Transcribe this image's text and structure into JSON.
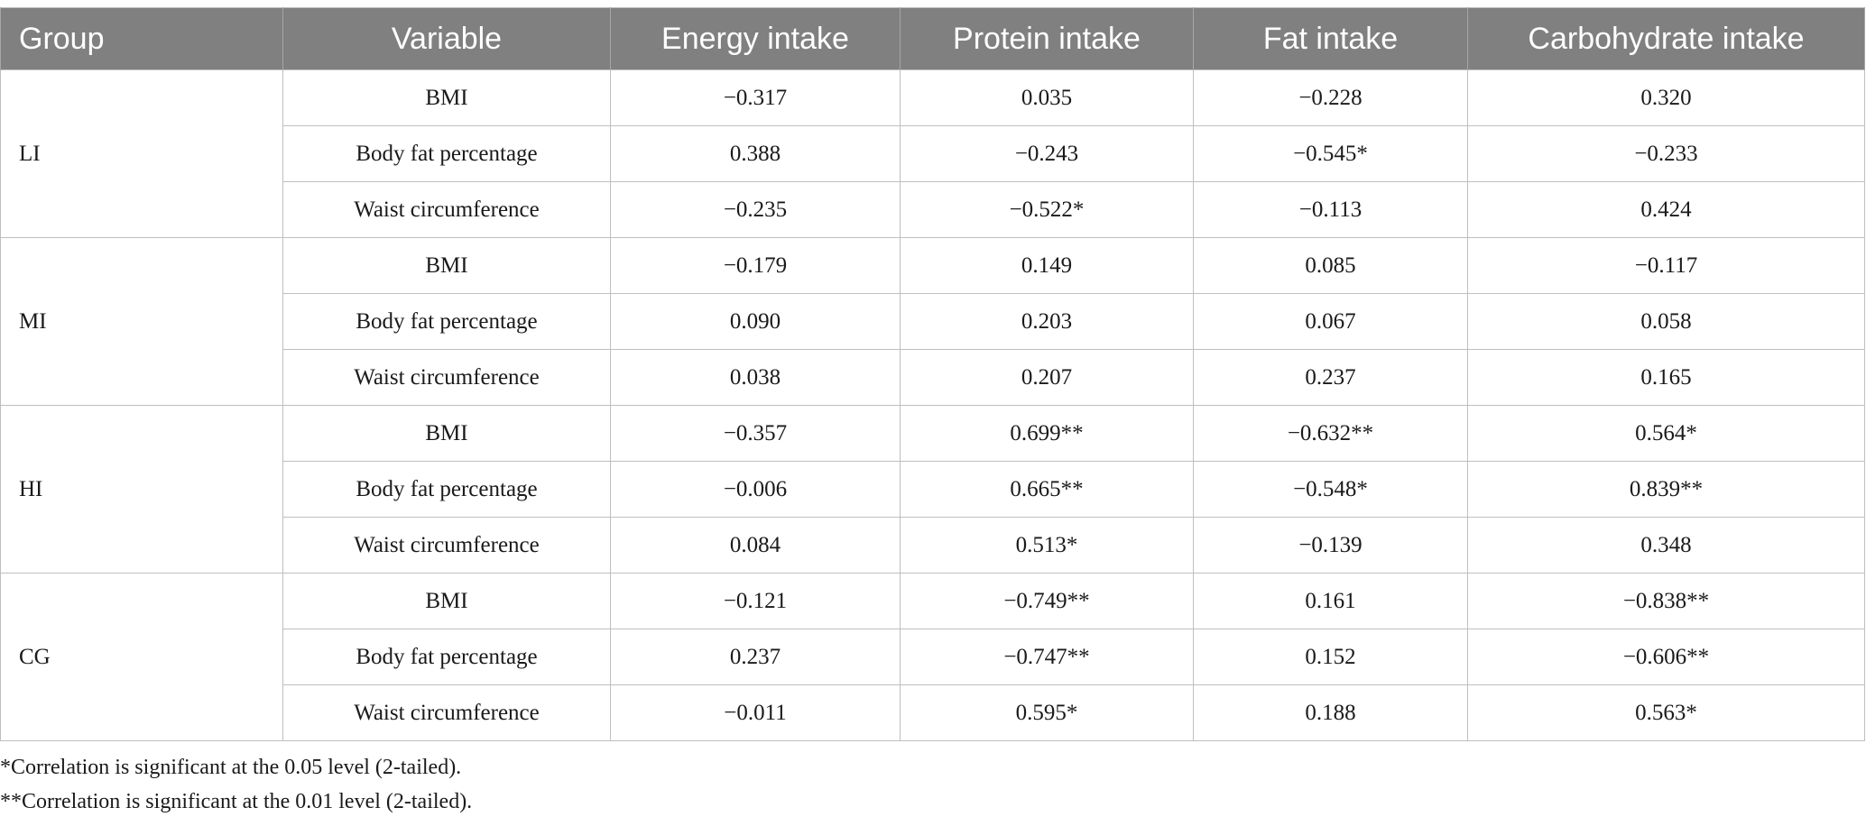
{
  "table": {
    "headers": [
      "Group",
      "Variable",
      "Energy intake",
      "Protein intake",
      "Fat intake",
      "Carbohydrate intake"
    ],
    "groups": [
      {
        "name": "LI",
        "rows": [
          [
            "BMI",
            "−0.317",
            "0.035",
            "−0.228",
            "0.320"
          ],
          [
            "Body fat percentage",
            "0.388",
            "−0.243",
            "−0.545*",
            "−0.233"
          ],
          [
            "Waist circumference",
            "−0.235",
            "−0.522*",
            "−0.113",
            "0.424"
          ]
        ]
      },
      {
        "name": "MI",
        "rows": [
          [
            "BMI",
            "−0.179",
            "0.149",
            "0.085",
            "−0.117"
          ],
          [
            "Body fat percentage",
            "0.090",
            "0.203",
            "0.067",
            "0.058"
          ],
          [
            "Waist circumference",
            "0.038",
            "0.207",
            "0.237",
            "0.165"
          ]
        ]
      },
      {
        "name": "HI",
        "rows": [
          [
            "BMI",
            "−0.357",
            "0.699**",
            "−0.632**",
            "0.564*"
          ],
          [
            "Body fat percentage",
            "−0.006",
            "0.665**",
            "−0.548*",
            "0.839**"
          ],
          [
            "Waist circumference",
            "0.084",
            "0.513*",
            "−0.139",
            "0.348"
          ]
        ]
      },
      {
        "name": "CG",
        "rows": [
          [
            "BMI",
            "−0.121",
            "−0.749**",
            "0.161",
            "−0.838**"
          ],
          [
            "Body fat percentage",
            "0.237",
            "−0.747**",
            "0.152",
            "−0.606**"
          ],
          [
            "Waist circumference",
            "−0.011",
            "0.595*",
            "0.188",
            "0.563*"
          ]
        ]
      }
    ]
  },
  "footnotes": [
    "*Correlation is significant at the 0.05 level (2-tailed).",
    "**Correlation is significant at the 0.01 level (2-tailed)."
  ],
  "colors": {
    "header_background": "#808080",
    "header_text": "#ffffff",
    "grid_lines": "#bfbfbf"
  }
}
